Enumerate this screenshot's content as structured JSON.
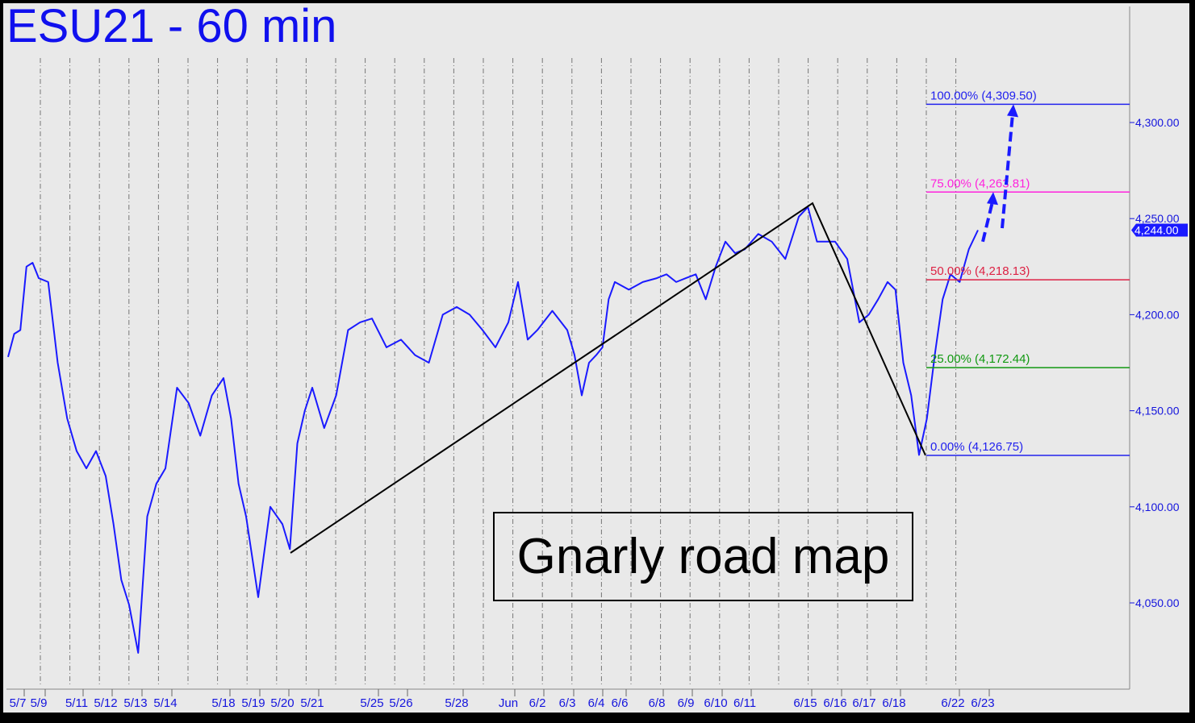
{
  "chart_data": {
    "type": "line",
    "title": "ESU21 - 60 min",
    "annotation": "Gnarly road map",
    "ylim": [
      4015,
      4335
    ],
    "y_ticks": [
      "4,300.00",
      "4,250.00",
      "4,200.00",
      "4,150.00",
      "4,100.00",
      "4,050.00"
    ],
    "y_tick_values": [
      4300,
      4250,
      4200,
      4150,
      4100,
      4050
    ],
    "x_tick_labels": [
      "5/7",
      "5/9",
      "5/11",
      "5/12",
      "5/13",
      "5/14",
      "5/18",
      "5/19",
      "5/20",
      "5/21",
      "5/25",
      "5/26",
      "5/28",
      "Jun",
      "6/2",
      "6/3",
      "6/4",
      "6/6",
      "6/8",
      "6/9",
      "6/10",
      "6/11",
      "6/15",
      "6/16",
      "6/17",
      "6/18",
      "6/22",
      "6/23"
    ],
    "grid": "vertical dashed",
    "last_price": {
      "label": "4,244.00",
      "value": 4244.0
    },
    "series": [
      {
        "color": "#1a1aff",
        "points": [
          {
            "date": "5/7",
            "prices": [
              4178,
              4190,
              4192,
              4225,
              4227
            ]
          },
          {
            "date": "5/9",
            "prices": [
              4219,
              4217,
              4175,
              4146
            ]
          },
          {
            "date": "5/11",
            "prices": [
              4129,
              4120,
              4129
            ]
          },
          {
            "date": "5/12",
            "prices": [
              4116,
              4091,
              4062
            ]
          },
          {
            "date": "5/13",
            "prices": [
              4049,
              4024,
              4095,
              4112
            ]
          },
          {
            "date": "5/14",
            "prices": [
              4120,
              4162,
              4154,
              4137,
              4158
            ]
          },
          {
            "date": "5/18",
            "prices": [
              4167,
              4146,
              4112
            ]
          },
          {
            "date": "5/19",
            "prices": [
              4095,
              4053,
              4100
            ]
          },
          {
            "date": "5/20",
            "prices": [
              4091,
              4078,
              4133,
              4150
            ]
          },
          {
            "date": "5/21",
            "prices": [
              4162,
              4141,
              4158,
              4192,
              4196
            ]
          },
          {
            "date": "5/25",
            "prices": [
              4198,
              4183
            ]
          },
          {
            "date": "5/26",
            "prices": [
              4187,
              4179,
              4175,
              4200
            ]
          },
          {
            "date": "5/28",
            "prices": [
              4204,
              4200,
              4192,
              4183
            ]
          },
          {
            "date": "Jun",
            "prices": [
              4196,
              4217,
              4187
            ]
          },
          {
            "date": "6/2",
            "prices": [
              4192,
              4202
            ]
          },
          {
            "date": "6/3",
            "prices": [
              4192,
              4179,
              4158,
              4175
            ]
          },
          {
            "date": "6/4",
            "prices": [
              4179,
              4183,
              4208
            ]
          },
          {
            "date": "6/6",
            "prices": [
              4217,
              4213,
              4217
            ]
          },
          {
            "date": "6/8",
            "prices": [
              4219,
              4221,
              4217
            ]
          },
          {
            "date": "6/9",
            "prices": [
              4219,
              4221,
              4208
            ]
          },
          {
            "date": "6/10",
            "prices": [
              4225,
              4238,
              4232
            ]
          },
          {
            "date": "6/11",
            "prices": [
              4234,
              4242,
              4238,
              4229
            ]
          },
          {
            "date": "6/15",
            "prices": [
              4251,
              4256,
              4238,
              4238
            ]
          },
          {
            "date": "6/16",
            "prices": [
              4238,
              4229
            ]
          },
          {
            "date": "6/17",
            "prices": [
              4196,
              4200,
              4208
            ]
          },
          {
            "date": "6/18",
            "prices": [
              4217,
              4213,
              4175,
              4158,
              4127,
              4146,
              4179,
              4208
            ]
          },
          {
            "date": "6/22",
            "prices": [
              4221,
              4217,
              4234
            ]
          },
          {
            "date": "6/23",
            "prices": [
              4244
            ]
          }
        ]
      }
    ],
    "fib_levels": [
      {
        "label": "100.00% (4,309.50)",
        "value": 4309.5,
        "color": "#2222ee"
      },
      {
        "label": "75.00% (4,263.81)",
        "value": 4263.81,
        "color": "#ff22dd"
      },
      {
        "label": "50.00% (4,218.13)",
        "value": 4218.13,
        "color": "#dd2244"
      },
      {
        "label": "25.00% (4,172.44)",
        "value": 4172.44,
        "color": "#119911"
      },
      {
        "label": "0.00% (4,126.75)",
        "value": 4126.75,
        "color": "#2222ee"
      }
    ],
    "pattern_points": [
      {
        "date": "5/20",
        "price": 4076
      },
      {
        "date": "6/15",
        "price": 4258
      },
      {
        "date": "6/18",
        "price": 4126.75
      }
    ],
    "projection_arrows": [
      {
        "from": 4238,
        "to": 4263.81
      },
      {
        "from": 4245,
        "to": 4309.5
      }
    ]
  }
}
